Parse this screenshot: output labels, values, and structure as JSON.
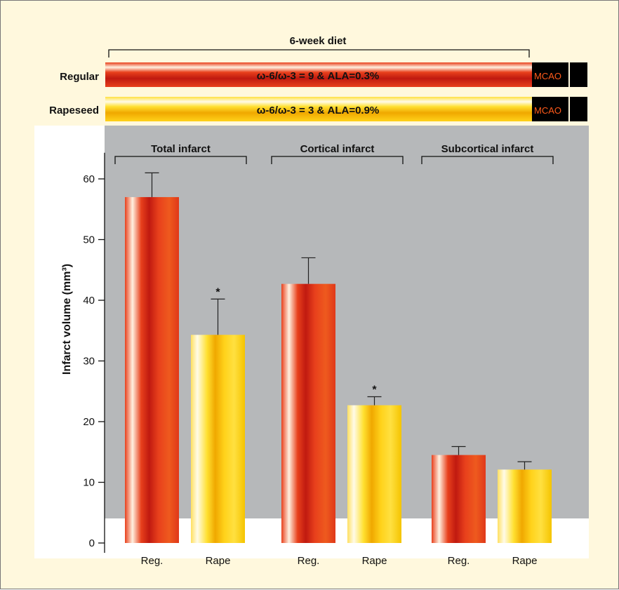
{
  "header": {
    "diet_label": "6-week diet",
    "rows": [
      {
        "name": "Regular",
        "formula": "ω-6/ω-3 = 9 & ALA=0.3%",
        "end_label": "MCAO",
        "style": "red"
      },
      {
        "name": "Rapeseed",
        "formula": "ω-6/ω-3 = 3 & ALA=0.9%",
        "end_label": "MCAO",
        "style": "yellow"
      }
    ]
  },
  "colors": {
    "panel_bg": "#fff8dd",
    "plot_bg": "#b6b8ba",
    "red_mid": "#e8401c",
    "red_dark": "#c01a10",
    "yellow_mid": "#ffd21a",
    "yellow_dark": "#f0a800",
    "mcao_text": "#ff5a1a"
  },
  "chart_data": {
    "type": "bar",
    "ylabel": "Infarct volume (mm³)",
    "ylim": [
      0,
      65
    ],
    "yticks": [
      0,
      10,
      20,
      30,
      40,
      50,
      60
    ],
    "groups": [
      {
        "label": "Total infarct",
        "bars": [
          {
            "label": "Reg.",
            "value": 57,
            "error": 4,
            "style": "red",
            "sig": ""
          },
          {
            "label": "Rape",
            "value": 34.3,
            "error": 5.9,
            "style": "yellow",
            "sig": "*"
          }
        ]
      },
      {
        "label": "Cortical infarct",
        "bars": [
          {
            "label": "Reg.",
            "value": 42.7,
            "error": 4.3,
            "style": "red",
            "sig": ""
          },
          {
            "label": "Rape",
            "value": 22.7,
            "error": 1.4,
            "style": "yellow",
            "sig": "*"
          }
        ]
      },
      {
        "label": "Subcortical infarct",
        "bars": [
          {
            "label": "Reg.",
            "value": 14.5,
            "error": 1.4,
            "style": "red",
            "sig": ""
          },
          {
            "label": "Rape",
            "value": 12.1,
            "error": 1.3,
            "style": "yellow",
            "sig": ""
          }
        ]
      }
    ]
  }
}
